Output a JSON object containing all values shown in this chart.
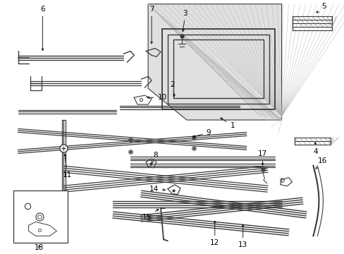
{
  "bg_color": "#ffffff",
  "lc": "#3a3a3a",
  "figsize": [
    4.89,
    3.6
  ],
  "dpi": 100,
  "label_fs": 7.5,
  "arrow_lw": 0.6,
  "arrow_ms": 5
}
